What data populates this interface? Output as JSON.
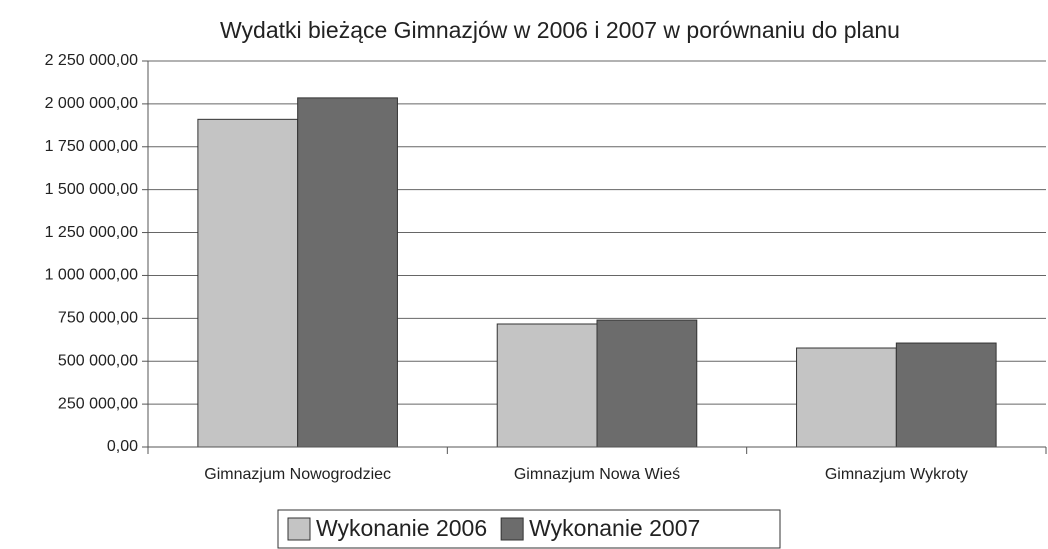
{
  "chart_data": {
    "type": "bar",
    "title": "Wydatki bieżące Gimnazjów w 2006 i 2007  w porównaniu do planu",
    "categories": [
      "Gimnazjum Nowogrodziec",
      "Gimnazjum Nowa Wieś",
      "Gimnazjum Wykroty"
    ],
    "series": [
      {
        "name": "Wykonanie 2006",
        "color": "#c4c4c4",
        "values": [
          1910000,
          717000,
          577000
        ]
      },
      {
        "name": "Wykonanie 2007",
        "color": "#6c6c6c",
        "values": [
          2035000,
          740000,
          606000
        ]
      }
    ],
    "ylim": [
      0,
      2250000
    ],
    "yticks": [
      {
        "value": 0,
        "label": "0,00"
      },
      {
        "value": 250000,
        "label": "250 000,00"
      },
      {
        "value": 500000,
        "label": "500 000,00"
      },
      {
        "value": 750000,
        "label": "750 000,00"
      },
      {
        "value": 1000000,
        "label": "1 000 000,00"
      },
      {
        "value": 1250000,
        "label": "1 250 000,00"
      },
      {
        "value": 1500000,
        "label": "1 500 000,00"
      },
      {
        "value": 1750000,
        "label": "1 750 000,00"
      },
      {
        "value": 2000000,
        "label": "2 000 000,00"
      },
      {
        "value": 2250000,
        "label": "2 250 000,00"
      }
    ],
    "grid": true,
    "legend": "bottom"
  }
}
